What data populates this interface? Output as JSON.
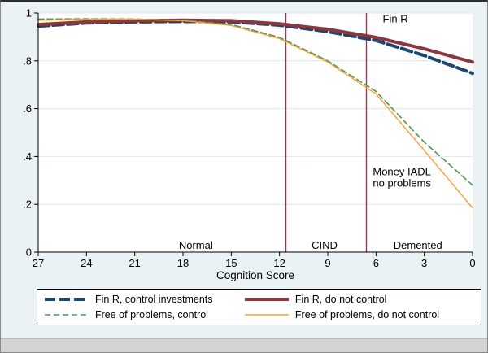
{
  "figure": {
    "bg_color": "#eaf2f3",
    "plot_bg": "#ffffff",
    "grid_color": "#dce8ec",
    "axis_color": "#000000",
    "ref_line_color": "#c22443"
  },
  "chart_data": {
    "type": "line",
    "title": "",
    "xlabel": "Cognition Score",
    "ylabel": "",
    "xlim": [
      27,
      0
    ],
    "ylim": [
      0,
      1
    ],
    "grid": true,
    "x": [
      27,
      24,
      21,
      18,
      15,
      12,
      9,
      6,
      3,
      0
    ],
    "x_tick_labels": [
      "27",
      "24",
      "21",
      "18",
      "15",
      "12",
      "9",
      "6",
      "3",
      "0"
    ],
    "y_ticks": [
      {
        "v": 0,
        "label": "0"
      },
      {
        "v": 0.2,
        "label": ".2"
      },
      {
        "v": 0.4,
        "label": ".4"
      },
      {
        "v": 0.6,
        "label": ".6"
      },
      {
        "v": 0.8,
        "label": ".8"
      },
      {
        "v": 1,
        "label": "1"
      }
    ],
    "series": [
      {
        "name": "Fin R, control investments",
        "color": "#1a476f",
        "width": 4,
        "dash": "13 5",
        "values": [
          0.945,
          0.958,
          0.963,
          0.965,
          0.963,
          0.949,
          0.922,
          0.885,
          0.822,
          0.748
        ]
      },
      {
        "name": "Fin R, do not control",
        "color": "#90353b",
        "width": 4,
        "dash": "",
        "values": [
          0.952,
          0.963,
          0.968,
          0.97,
          0.968,
          0.955,
          0.932,
          0.898,
          0.85,
          0.795
        ]
      },
      {
        "name": "Free of problems, control",
        "color": "#4e9850",
        "width": 1.6,
        "dash": "7 4",
        "values": [
          0.975,
          0.976,
          0.975,
          0.97,
          0.952,
          0.898,
          0.8,
          0.672,
          0.46,
          0.28
        ]
      },
      {
        "name": "Free of problems, do not control",
        "color": "#ff9d2e",
        "width": 1.4,
        "dash": "",
        "values": [
          0.97,
          0.974,
          0.974,
          0.968,
          0.948,
          0.893,
          0.795,
          0.662,
          0.425,
          0.185
        ]
      }
    ],
    "ref_lines": [
      {
        "x": 11.6
      },
      {
        "x": 6.6
      }
    ],
    "annotations": [
      {
        "text": "Fin R",
        "x": 4.8,
        "y": 0.975,
        "anchor": "middle"
      },
      {
        "text": "Money IADL",
        "x": 6.2,
        "y": 0.335,
        "anchor": "start"
      },
      {
        "text": "no problems",
        "x": 6.2,
        "y": 0.287,
        "anchor": "start"
      },
      {
        "text": "Normal",
        "x": 17.2,
        "y": 0.028,
        "anchor": "middle"
      },
      {
        "text": "CIND",
        "x": 9.2,
        "y": 0.028,
        "anchor": "middle"
      },
      {
        "text": "Demented",
        "x": 3.4,
        "y": 0.028,
        "anchor": "middle"
      }
    ],
    "legend_position": "bottom",
    "legend_order": [
      0,
      1,
      2,
      3
    ]
  }
}
